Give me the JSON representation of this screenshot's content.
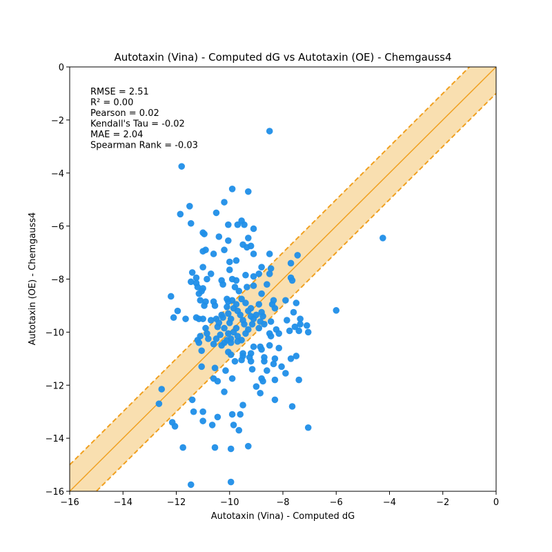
{
  "chart_data": {
    "type": "scatter",
    "title": "Autotaxin (Vina) - Computed dG vs Autotaxin (OE) - Chemgauss4",
    "xlabel": "Autotaxin (Vina) - Computed dG",
    "ylabel": "Autotaxin (OE) - Chemgauss4",
    "xlim": [
      -16,
      0
    ],
    "ylim": [
      -16,
      0
    ],
    "xticks": [
      -16,
      -14,
      -12,
      -10,
      -8,
      -6,
      -4,
      -2,
      0
    ],
    "yticks": [
      -16,
      -14,
      -12,
      -10,
      -8,
      -6,
      -4,
      -2,
      0
    ],
    "xtick_labels": [
      "−16",
      "−14",
      "−12",
      "−10",
      "−8",
      "−6",
      "−4",
      "−2",
      "0"
    ],
    "ytick_labels": [
      "−16",
      "−14",
      "−12",
      "−10",
      "−8",
      "−6",
      "−4",
      "−2",
      "0"
    ],
    "grid": false,
    "stats": [
      "RMSE = 2.51",
      "R² = 0.00",
      "Pearson = 0.02",
      "Kendall's Tau = -0.02",
      "MAE = 2.04",
      "Spearman Rank = -0.03"
    ],
    "identity_line": {
      "color": "#f0a020",
      "from": [
        -16,
        -16
      ],
      "to": [
        0,
        0
      ]
    },
    "band": {
      "offset": 1,
      "fill_color": "#f9dfb0",
      "edge_color": "#f0a020"
    },
    "marker_color": "#1f8ee8",
    "points": [
      [
        -8.5,
        -2.42
      ],
      [
        -11.8,
        -3.75
      ],
      [
        -9.9,
        -4.6
      ],
      [
        -9.3,
        -4.7
      ],
      [
        -4.25,
        -6.45
      ],
      [
        -6.0,
        -9.18
      ],
      [
        -11.5,
        -5.25
      ],
      [
        -11.85,
        -5.55
      ],
      [
        -10.2,
        -5.1
      ],
      [
        -10.5,
        -5.5
      ],
      [
        -11.45,
        -5.9
      ],
      [
        -10.05,
        -5.95
      ],
      [
        -9.7,
        -5.95
      ],
      [
        -9.55,
        -5.8
      ],
      [
        -9.45,
        -5.95
      ],
      [
        -9.1,
        -6.1
      ],
      [
        -11.0,
        -6.25
      ],
      [
        -10.95,
        -6.3
      ],
      [
        -10.4,
        -6.4
      ],
      [
        -10.05,
        -6.55
      ],
      [
        -9.3,
        -6.45
      ],
      [
        -9.5,
        -6.7
      ],
      [
        -9.2,
        -6.75
      ],
      [
        -9.35,
        -6.8
      ],
      [
        -10.9,
        -6.9
      ],
      [
        -11.0,
        -6.95
      ],
      [
        -10.6,
        -7.05
      ],
      [
        -10.2,
        -6.9
      ],
      [
        -9.1,
        -7.05
      ],
      [
        -8.5,
        -7.05
      ],
      [
        -7.45,
        -7.1
      ],
      [
        -10.0,
        -7.35
      ],
      [
        -9.75,
        -7.3
      ],
      [
        -7.7,
        -7.4
      ],
      [
        -11.0,
        -7.55
      ],
      [
        -10.0,
        -7.65
      ],
      [
        -8.8,
        -7.55
      ],
      [
        -8.45,
        -7.6
      ],
      [
        -11.4,
        -7.75
      ],
      [
        -10.7,
        -7.8
      ],
      [
        -9.4,
        -7.85
      ],
      [
        -9.1,
        -7.9
      ],
      [
        -8.9,
        -7.8
      ],
      [
        -8.5,
        -7.8
      ],
      [
        -7.7,
        -7.95
      ],
      [
        -11.25,
        -7.95
      ],
      [
        -10.85,
        -8.0
      ],
      [
        -10.3,
        -8.05
      ],
      [
        -9.9,
        -8.0
      ],
      [
        -9.75,
        -8.05
      ],
      [
        -11.45,
        -8.1
      ],
      [
        -11.25,
        -8.15
      ],
      [
        -10.25,
        -8.2
      ],
      [
        -9.8,
        -8.3
      ],
      [
        -9.35,
        -8.3
      ],
      [
        -9.1,
        -8.25
      ],
      [
        -8.6,
        -8.2
      ],
      [
        -7.65,
        -8.05
      ],
      [
        -11.2,
        -8.3
      ],
      [
        -11.05,
        -8.45
      ],
      [
        -11.15,
        -8.55
      ],
      [
        -11.0,
        -8.35
      ],
      [
        -9.65,
        -8.45
      ],
      [
        -8.8,
        -8.55
      ],
      [
        -12.2,
        -8.65
      ],
      [
        -10.1,
        -8.75
      ],
      [
        -9.9,
        -8.8
      ],
      [
        -9.55,
        -8.75
      ],
      [
        -8.35,
        -8.8
      ],
      [
        -7.9,
        -8.8
      ],
      [
        -11.1,
        -8.8
      ],
      [
        -10.9,
        -8.85
      ],
      [
        -10.6,
        -8.85
      ],
      [
        -10.05,
        -8.85
      ],
      [
        -9.75,
        -8.95
      ],
      [
        -9.4,
        -8.9
      ],
      [
        -8.9,
        -8.95
      ],
      [
        -8.4,
        -8.95
      ],
      [
        -7.5,
        -8.9
      ],
      [
        -10.95,
        -9.0
      ],
      [
        -10.55,
        -9.0
      ],
      [
        -10.1,
        -9.05
      ],
      [
        -9.85,
        -9.1
      ],
      [
        -9.2,
        -9.1
      ],
      [
        -8.3,
        -9.1
      ],
      [
        -11.95,
        -9.2
      ],
      [
        -9.7,
        -9.2
      ],
      [
        -9.3,
        -9.2
      ],
      [
        -8.8,
        -9.25
      ],
      [
        -7.6,
        -9.25
      ],
      [
        -10.3,
        -9.35
      ],
      [
        -10.05,
        -9.3
      ],
      [
        -9.6,
        -9.35
      ],
      [
        -9.2,
        -9.4
      ],
      [
        -9.0,
        -9.35
      ],
      [
        -8.75,
        -9.4
      ],
      [
        -11.65,
        -9.5
      ],
      [
        -11.25,
        -9.45
      ],
      [
        -11.0,
        -9.5
      ],
      [
        -10.5,
        -9.5
      ],
      [
        -10.25,
        -9.45
      ],
      [
        -9.95,
        -9.5
      ],
      [
        -9.5,
        -9.55
      ],
      [
        -9.1,
        -9.5
      ],
      [
        -8.85,
        -9.6
      ],
      [
        -8.45,
        -9.6
      ],
      [
        -7.85,
        -9.55
      ],
      [
        -7.35,
        -9.5
      ],
      [
        -12.1,
        -9.45
      ],
      [
        -11.15,
        -9.5
      ],
      [
        -10.7,
        -9.55
      ],
      [
        -10.4,
        -9.65
      ],
      [
        -10.0,
        -9.65
      ],
      [
        -9.45,
        -9.7
      ],
      [
        -9.15,
        -9.7
      ],
      [
        -8.7,
        -9.7
      ],
      [
        -7.55,
        -9.8
      ],
      [
        -7.35,
        -9.7
      ],
      [
        -7.1,
        -9.75
      ],
      [
        -10.9,
        -9.85
      ],
      [
        -10.45,
        -9.8
      ],
      [
        -10.2,
        -9.85
      ],
      [
        -9.75,
        -9.85
      ],
      [
        -9.3,
        -9.9
      ],
      [
        -8.9,
        -9.85
      ],
      [
        -8.25,
        -9.9
      ],
      [
        -7.4,
        -9.95
      ],
      [
        -7.05,
        -10.0
      ],
      [
        -11.1,
        -10.15
      ],
      [
        -10.85,
        -10.05
      ],
      [
        -10.35,
        -10.1
      ],
      [
        -10.05,
        -10.05
      ],
      [
        -9.85,
        -10.0
      ],
      [
        -9.7,
        -10.15
      ],
      [
        -9.4,
        -10.05
      ],
      [
        -8.5,
        -10.05
      ],
      [
        -8.15,
        -10.05
      ],
      [
        -7.75,
        -9.95
      ],
      [
        -11.2,
        -10.3
      ],
      [
        -10.8,
        -10.25
      ],
      [
        -10.5,
        -10.25
      ],
      [
        -10.1,
        -10.3
      ],
      [
        -9.95,
        -10.25
      ],
      [
        -9.55,
        -10.3
      ],
      [
        -8.45,
        -10.15
      ],
      [
        -11.15,
        -10.4
      ],
      [
        -10.6,
        -10.45
      ],
      [
        -10.2,
        -10.4
      ],
      [
        -9.95,
        -10.4
      ],
      [
        -9.7,
        -10.35
      ],
      [
        -9.1,
        -10.55
      ],
      [
        -8.85,
        -10.55
      ],
      [
        -8.5,
        -10.5
      ],
      [
        -8.15,
        -10.6
      ],
      [
        -10.3,
        -10.5
      ],
      [
        -11.05,
        -10.7
      ],
      [
        -10.05,
        -10.75
      ],
      [
        -9.5,
        -10.8
      ],
      [
        -9.2,
        -10.8
      ],
      [
        -8.8,
        -10.65
      ],
      [
        -9.95,
        -10.85
      ],
      [
        -9.5,
        -10.9
      ],
      [
        -9.25,
        -10.95
      ],
      [
        -8.7,
        -10.95
      ],
      [
        -8.3,
        -11.0
      ],
      [
        -7.7,
        -11.0
      ],
      [
        -7.5,
        -10.9
      ],
      [
        -9.8,
        -11.1
      ],
      [
        -9.55,
        -11.05
      ],
      [
        -9.2,
        -11.1
      ],
      [
        -8.7,
        -11.1
      ],
      [
        -8.35,
        -11.2
      ],
      [
        -8.05,
        -11.3
      ],
      [
        -11.05,
        -11.3
      ],
      [
        -10.55,
        -11.35
      ],
      [
        -10.15,
        -11.45
      ],
      [
        -9.15,
        -11.4
      ],
      [
        -8.6,
        -11.45
      ],
      [
        -7.9,
        -11.55
      ],
      [
        -10.6,
        -11.75
      ],
      [
        -10.45,
        -11.85
      ],
      [
        -9.9,
        -11.75
      ],
      [
        -8.8,
        -11.75
      ],
      [
        -8.75,
        -11.85
      ],
      [
        -8.3,
        -11.8
      ],
      [
        -7.4,
        -11.8
      ],
      [
        -9.0,
        -12.05
      ],
      [
        -12.55,
        -12.15
      ],
      [
        -10.2,
        -12.25
      ],
      [
        -8.85,
        -12.3
      ],
      [
        -11.4,
        -12.55
      ],
      [
        -8.3,
        -12.55
      ],
      [
        -12.65,
        -12.7
      ],
      [
        -9.5,
        -12.75
      ],
      [
        -7.65,
        -12.8
      ],
      [
        -11.35,
        -13.0
      ],
      [
        -11.0,
        -13.0
      ],
      [
        -9.9,
        -13.1
      ],
      [
        -9.6,
        -13.1
      ],
      [
        -10.45,
        -13.2
      ],
      [
        -11.0,
        -13.35
      ],
      [
        -12.15,
        -13.4
      ],
      [
        -10.65,
        -13.5
      ],
      [
        -9.85,
        -13.5
      ],
      [
        -12.05,
        -13.55
      ],
      [
        -7.05,
        -13.6
      ],
      [
        -9.65,
        -13.7
      ],
      [
        -9.3,
        -14.3
      ],
      [
        -11.75,
        -14.35
      ],
      [
        -10.55,
        -14.35
      ],
      [
        -9.95,
        -14.4
      ],
      [
        -9.95,
        -15.65
      ],
      [
        -11.45,
        -15.75
      ]
    ]
  }
}
